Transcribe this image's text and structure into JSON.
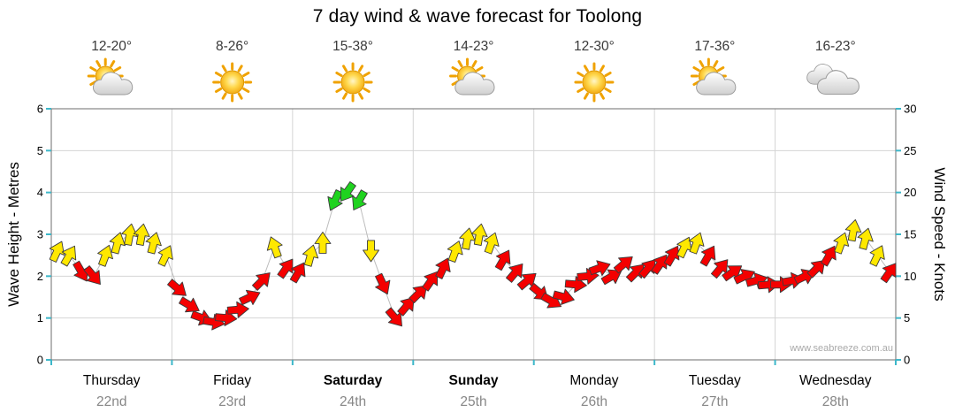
{
  "title": "7 day wind & wave forecast for Toolong",
  "watermark": "www.seabreeze.com.au",
  "days": [
    {
      "name": "Thursday",
      "date": "22nd",
      "temp": "12-20°",
      "icon": "sun-cloud",
      "weekend": false
    },
    {
      "name": "Friday",
      "date": "23rd",
      "temp": "8-26°",
      "icon": "sunny",
      "weekend": false
    },
    {
      "name": "Saturday",
      "date": "24th",
      "temp": "15-38°",
      "icon": "sunny",
      "weekend": true
    },
    {
      "name": "Sunday",
      "date": "25th",
      "temp": "14-23°",
      "icon": "sun-cloud",
      "weekend": true
    },
    {
      "name": "Monday",
      "date": "26th",
      "temp": "12-30°",
      "icon": "sunny",
      "weekend": false
    },
    {
      "name": "Tuesday",
      "date": "27th",
      "temp": "17-36°",
      "icon": "sun-cloud",
      "weekend": false
    },
    {
      "name": "Wednesday",
      "date": "28th",
      "temp": "16-23°",
      "icon": "cloudy",
      "weekend": false
    }
  ],
  "chart_data": {
    "type": "scatter",
    "marker": "directional-wind-arrow",
    "title": "7 day wind & wave forecast for Toolong",
    "categories": [
      "Thursday",
      "Friday",
      "Saturday",
      "Sunday",
      "Monday",
      "Tuesday",
      "Wednesday"
    ],
    "slots_per_day": 10,
    "ylabel_left": "Wave Height - Metres",
    "ylabel_right": "Wind Speed - Knots",
    "ylim_left": [
      0,
      6
    ],
    "ylim_right": [
      0,
      30
    ],
    "yticks_left": [
      0,
      1,
      2,
      3,
      4,
      5,
      6
    ],
    "yticks_right": [
      0,
      5,
      10,
      15,
      20,
      25,
      30
    ],
    "grid": true,
    "palette": {
      "Y": "#ffe800",
      "R": "#f40000",
      "G": "#1fd31f"
    },
    "knots": [
      13,
      12.5,
      10.5,
      10,
      12.5,
      14,
      15,
      15,
      14,
      12.5,
      8.5,
      6.5,
      5,
      4.5,
      5,
      6,
      7.5,
      9.5,
      13.5,
      11,
      10.5,
      12.5,
      14,
      19,
      20,
      19,
      13,
      9,
      5,
      6.5,
      8,
      9.5,
      11,
      13,
      14.5,
      15,
      14,
      12,
      10.5,
      9.5,
      8,
      7,
      7.5,
      9,
      10,
      11,
      10,
      11.5,
      10.5,
      11,
      11.5,
      12.5,
      13.5,
      14,
      12.5,
      11,
      10.5,
      10,
      9.5,
      9,
      9,
      9.5,
      10,
      11,
      12.5,
      14,
      15.5,
      14.5,
      12.5,
      10.5
    ],
    "dir_deg": [
      25,
      30,
      150,
      140,
      20,
      15,
      10,
      10,
      15,
      25,
      130,
      120,
      110,
      100,
      95,
      85,
      65,
      45,
      340,
      35,
      30,
      15,
      0,
      205,
      215,
      210,
      180,
      155,
      140,
      40,
      45,
      35,
      25,
      20,
      10,
      10,
      20,
      30,
      40,
      50,
      130,
      120,
      105,
      95,
      85,
      70,
      60,
      50,
      45,
      40,
      35,
      30,
      25,
      20,
      30,
      40,
      55,
      65,
      75,
      85,
      90,
      80,
      65,
      45,
      30,
      20,
      10,
      15,
      25,
      35
    ],
    "colors_seq": [
      "Y",
      "Y",
      "R",
      "R",
      "Y",
      "Y",
      "Y",
      "Y",
      "Y",
      "Y",
      "R",
      "R",
      "R",
      "R",
      "R",
      "R",
      "R",
      "R",
      "Y",
      "R",
      "R",
      "Y",
      "Y",
      "G",
      "G",
      "G",
      "Y",
      "R",
      "R",
      "R",
      "R",
      "R",
      "R",
      "Y",
      "Y",
      "Y",
      "Y",
      "R",
      "R",
      "R",
      "R",
      "R",
      "R",
      "R",
      "R",
      "R",
      "R",
      "R",
      "R",
      "R",
      "R",
      "R",
      "Y",
      "Y",
      "R",
      "R",
      "R",
      "R",
      "R",
      "R",
      "R",
      "R",
      "R",
      "R",
      "R",
      "Y",
      "Y",
      "Y",
      "Y",
      "R"
    ]
  }
}
